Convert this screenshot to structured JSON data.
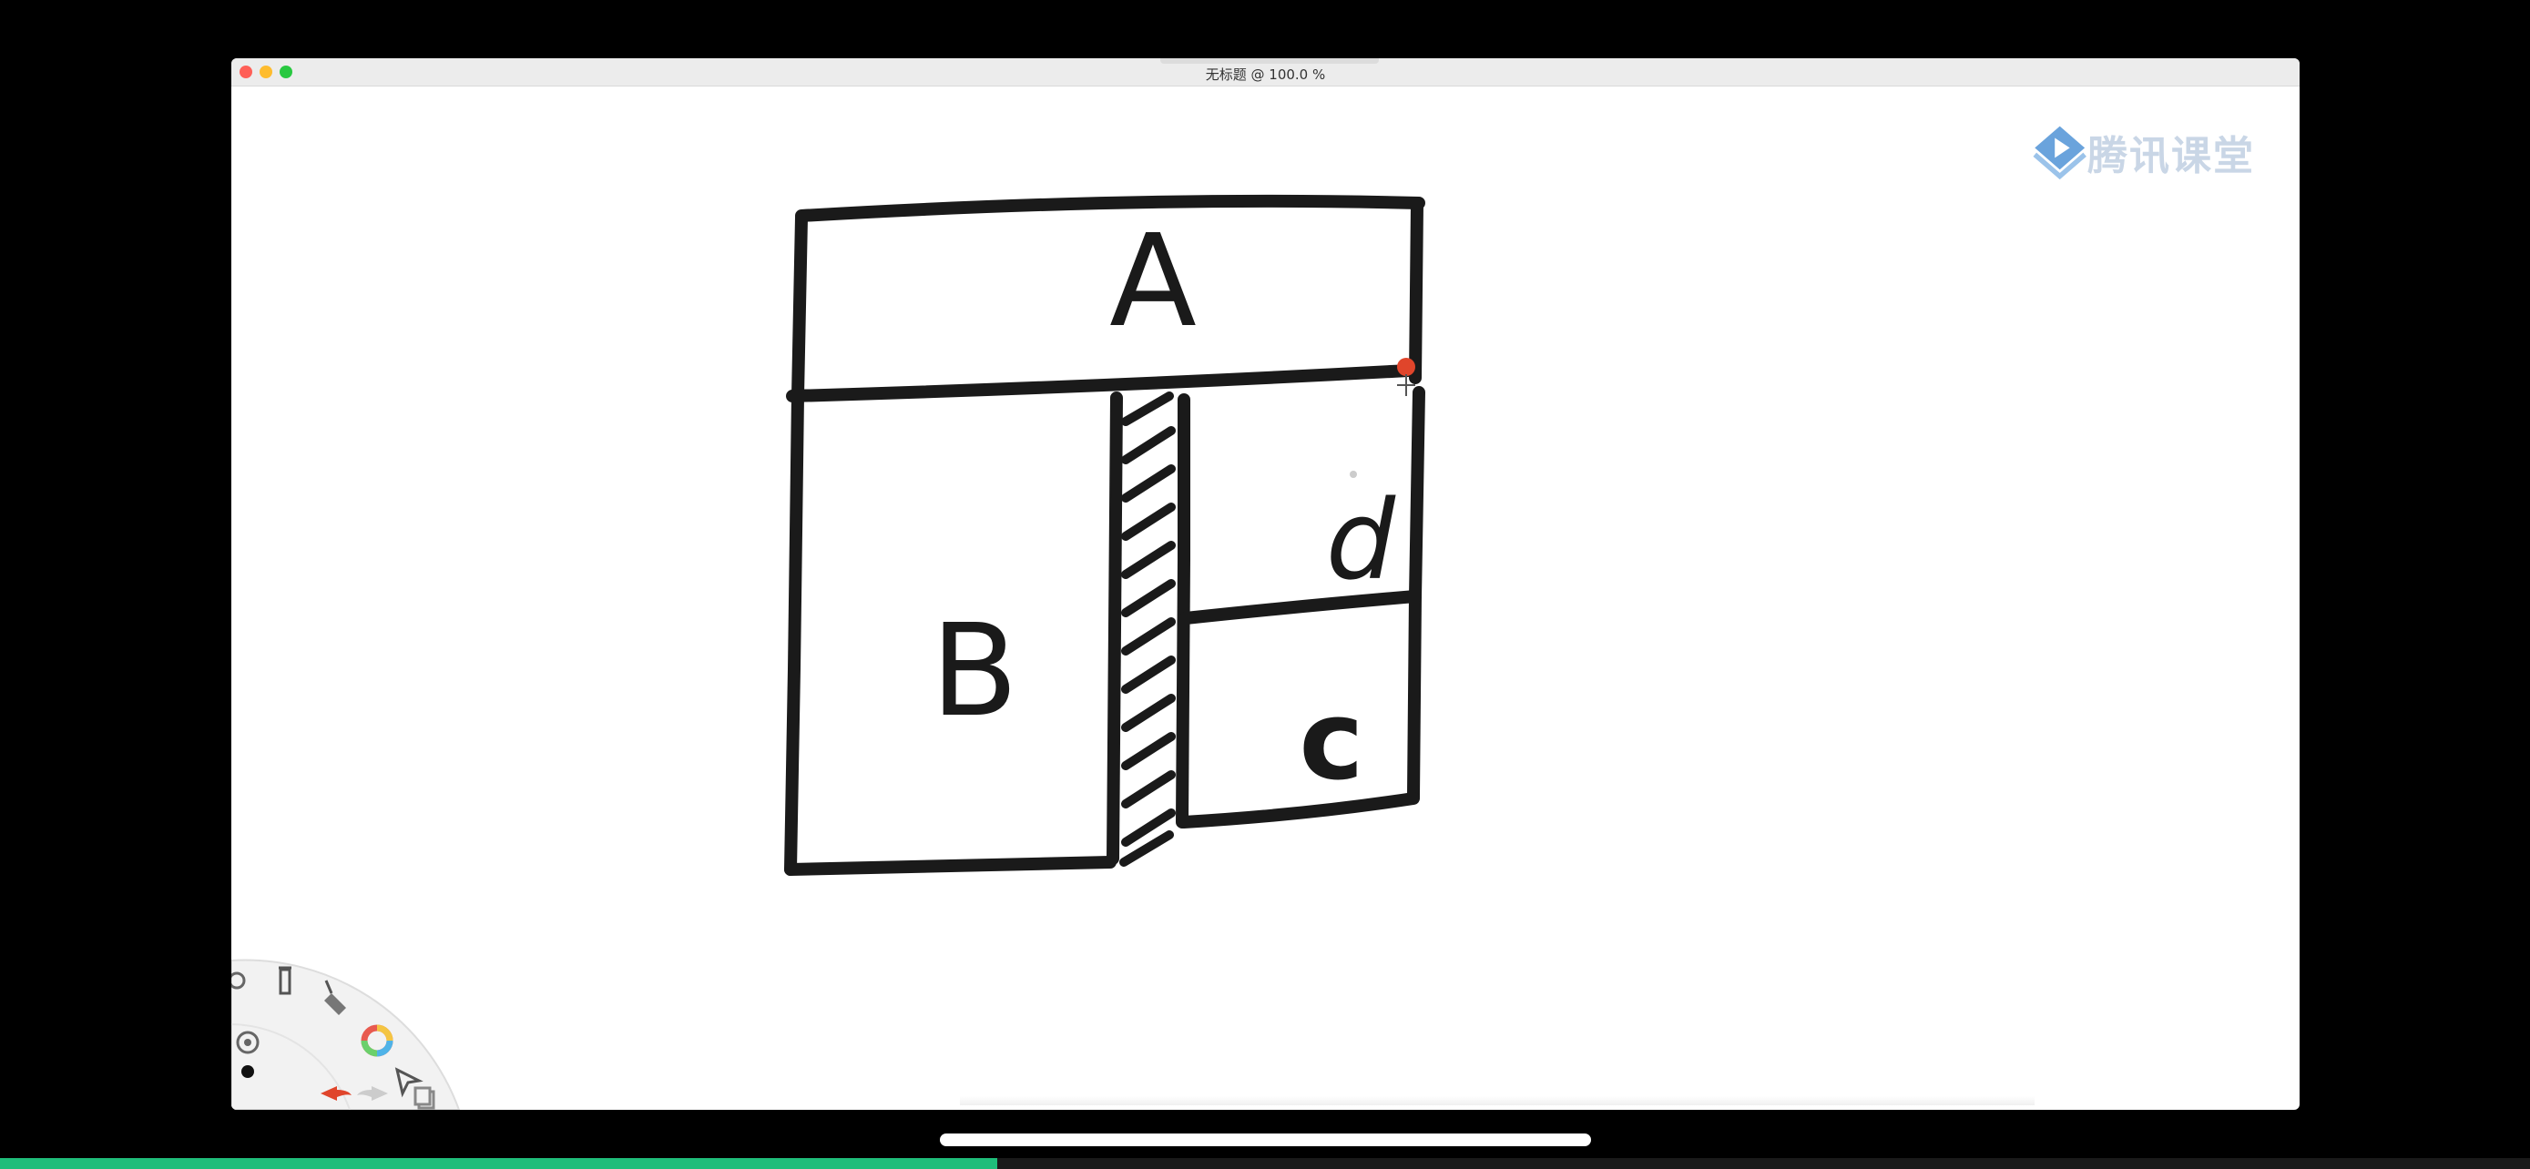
{
  "window": {
    "title": "无标题 @ 100.0 %"
  },
  "brand": {
    "name": "腾讯课堂",
    "logo_color": "#6aa3dc"
  },
  "drawing": {
    "labels": {
      "a": "A",
      "b": "B",
      "c": "c",
      "d": "d"
    },
    "stroke_color": "#1a1a1a",
    "cursor_color": "#e0452b"
  },
  "toolbar": {
    "icons": [
      "settings-icon",
      "brush-tool-icon",
      "eraser-icon",
      "color-wheel-icon",
      "selection-arrow-icon",
      "layers-icon",
      "undo-icon",
      "redo-icon",
      "brush-size-icon",
      "opacity-dot-icon"
    ],
    "undo_color": "#e0452b"
  },
  "playback": {
    "progress": 0.394,
    "progress_color": "#1fbd7a"
  }
}
